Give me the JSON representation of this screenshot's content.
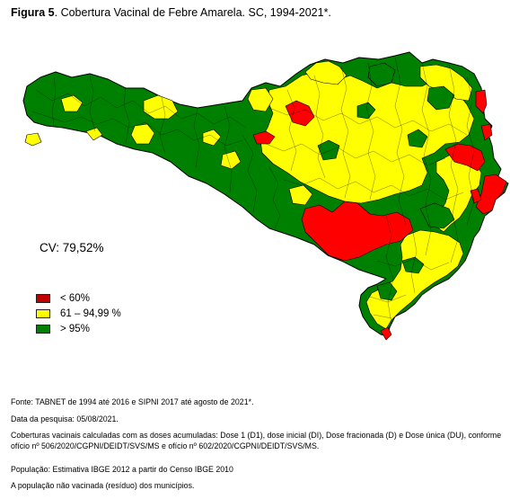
{
  "title": {
    "label": "Figura 5",
    "text": ". Cobertura Vacinal de Febre Amarela. SC, 1994-2021*."
  },
  "cv_label": "CV: 79,52%",
  "colors": {
    "low": "#ff0000",
    "mid": "#ffff00",
    "high": "#008000",
    "border": "#000000"
  },
  "legend": {
    "items": [
      {
        "label": "< 60%",
        "color": "#c00000"
      },
      {
        "label": "61 – 94,99 %",
        "color": "#ffff00"
      },
      {
        "label": "> 95%",
        "color": "#008000"
      }
    ]
  },
  "notes": {
    "source": "Fonte: TABNET de 1994 até 2016 e SIPNI 2017 até agosto de 2021*.",
    "date": "Data da pesquisa: 05/08/2021.",
    "method": "Coberturas vacinais calculadas com as doses acumuladas: Dose 1 (D1), dose inicial (DI),  Dose fracionada (D) e Dose única (DU), conforme ofício nº 506/2020/CGPNI/DEIDT/SVS/MS e ofício nº 602/2020/CGPNI/DEIDT/SVS/MS.",
    "population": "População: Estimativa IBGE 2012 a partir do Censo IBGE 2010",
    "unvaccinated": "A população não vacinada (resíduo) dos municípios."
  }
}
